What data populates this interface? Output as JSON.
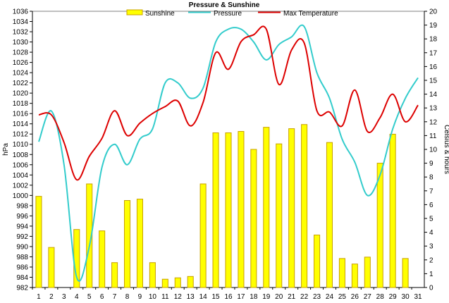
{
  "chart_data": {
    "type": "bar",
    "title": "Pressure & Sunshine",
    "ylabel_left": "hPa",
    "ylabel_right": "Celsius & hours",
    "categories": [
      "1",
      "2",
      "3",
      "4",
      "5",
      "6",
      "7",
      "8",
      "9",
      "10",
      "11",
      "12",
      "13",
      "14",
      "15",
      "16",
      "17",
      "18",
      "19",
      "20",
      "21",
      "22",
      "23",
      "24",
      "25",
      "26",
      "27",
      "28",
      "29",
      "30",
      "31"
    ],
    "ylim_left": [
      982,
      1036
    ],
    "ylim_right": [
      0,
      20
    ],
    "left_ticks": [
      "982",
      "984",
      "986",
      "988",
      "990",
      "992",
      "994",
      "996",
      "998",
      "1000",
      "1002",
      "1004",
      "1006",
      "1008",
      "1010",
      "1012",
      "1014",
      "1016",
      "1018",
      "1020",
      "1022",
      "1024",
      "1026",
      "1028",
      "1030",
      "1032",
      "1034",
      "1036"
    ],
    "right_ticks": [
      "0",
      "1",
      "2",
      "3",
      "4",
      "5",
      "6",
      "7",
      "8",
      "9",
      "10",
      "11",
      "12",
      "13",
      "14",
      "15",
      "16",
      "17",
      "18",
      "19",
      "20"
    ],
    "legend": [
      "Sunshine",
      "Pressure",
      "Max Temperature"
    ],
    "legend_position": "top",
    "colors": {
      "sunshine_fill": "#ffff00",
      "sunshine_stroke": "#c8a000",
      "pressure": "#33cccc",
      "max_temperature": "#dd0000"
    },
    "series": [
      {
        "name": "Sunshine",
        "axis": "right",
        "values": [
          6.6,
          2.9,
          0,
          4.2,
          7.5,
          4.1,
          1.8,
          6.3,
          6.4,
          1.8,
          0.6,
          0.7,
          0.8,
          7.5,
          11.2,
          11.2,
          11.3,
          10.0,
          11.6,
          10.4,
          11.5,
          11.8,
          3.8,
          10.5,
          2.1,
          1.7,
          2.2,
          9.0,
          11.1,
          2.1,
          0
        ],
        "note_axis": "right"
      },
      {
        "name": "Pressure",
        "axis": "left",
        "values": [
          1010.5,
          1016.5,
          1006,
          984,
          990,
          1005.5,
          1010,
          1006,
          1011,
          1013,
          1022,
          1022,
          1019,
          1021,
          1030,
          1032.5,
          1032.5,
          1030,
          1026.5,
          1029.5,
          1031,
          1033,
          1024,
          1019,
          1011,
          1006.5,
          1000,
          1004,
          1013,
          1019,
          1023
        ]
      },
      {
        "name": "Max Temperature",
        "axis": "right",
        "values": [
          12.5,
          12.5,
          10.5,
          7.8,
          9.5,
          10.8,
          12.8,
          11.0,
          11.9,
          12.6,
          13.1,
          13.5,
          11.7,
          13.4,
          17.0,
          15.8,
          17.8,
          18.3,
          18.7,
          14.7,
          17.2,
          17.7,
          12.8,
          12.7,
          11.7,
          14.3,
          11.3,
          12.3,
          14.0,
          12.0,
          13.2
        ]
      }
    ]
  }
}
